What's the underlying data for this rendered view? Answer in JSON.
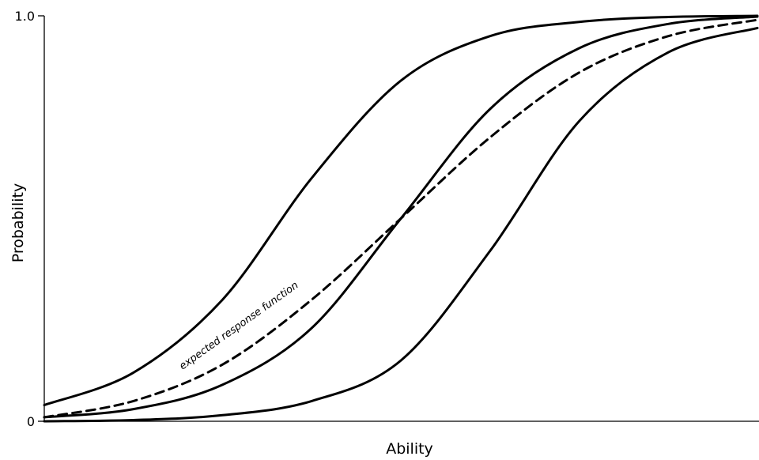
{
  "chart_data": {
    "type": "line",
    "title": "",
    "xlabel": "Ability",
    "ylabel": "Probability",
    "y_tick_labels": [
      "0",
      "1.0"
    ],
    "y_ticks": [
      0,
      1.0
    ],
    "ylim": [
      0,
      1.0
    ],
    "xlim": [
      -4,
      4
    ],
    "x_tick_labels": [],
    "grid": false,
    "legend": "none",
    "series": [
      {
        "style": "solid",
        "color": "#000000",
        "x": [
          -4,
          -3,
          -2,
          -1,
          0,
          1,
          2,
          3,
          4
        ],
        "y": [
          0.04,
          0.12,
          0.3,
          0.6,
          0.84,
          0.95,
          0.985,
          0.997,
          1.0
        ]
      },
      {
        "style": "solid",
        "color": "#000000",
        "x": [
          -4,
          -3,
          -2,
          -1,
          0,
          1,
          2,
          3,
          4
        ],
        "y": [
          0.01,
          0.03,
          0.09,
          0.23,
          0.5,
          0.77,
          0.92,
          0.98,
          0.998
        ]
      },
      {
        "style": "solid",
        "color": "#000000",
        "x": [
          -4,
          -3,
          -2,
          -1,
          0,
          1,
          2,
          3,
          4
        ],
        "y": [
          0.0,
          0.003,
          0.015,
          0.05,
          0.15,
          0.42,
          0.74,
          0.91,
          0.97
        ]
      },
      {
        "style": "dashed",
        "color": "#000000",
        "x": [
          -4,
          -3,
          -2,
          -1,
          0,
          1,
          2,
          3,
          4
        ],
        "y": [
          0.01,
          0.05,
          0.14,
          0.3,
          0.5,
          0.7,
          0.86,
          0.95,
          0.99
        ]
      }
    ],
    "annotations": [
      {
        "text": "expected response function",
        "series_index": 3
      }
    ]
  }
}
